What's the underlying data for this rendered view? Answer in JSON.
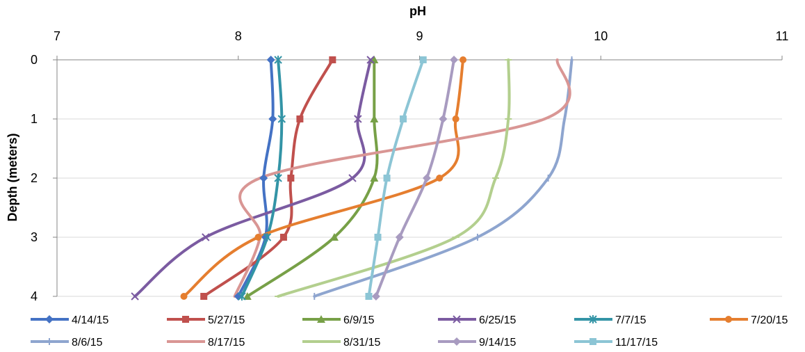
{
  "chart_data": {
    "type": "line",
    "xlabel": "pH",
    "ylabel": "Depth (meters)",
    "x_axis_position": "top",
    "y_axis_inverted": true,
    "xlim": [
      7,
      11
    ],
    "ylim": [
      0,
      4
    ],
    "xticks": [
      "7",
      "8",
      "9",
      "10",
      "11"
    ],
    "yticks": [
      "0",
      "1",
      "2",
      "3",
      "4"
    ],
    "grid": "horizontal",
    "legend_position": "bottom",
    "series": [
      {
        "name": "4/14/15",
        "color": "#4472C4",
        "marker": "diamond",
        "points": [
          [
            8.18,
            0
          ],
          [
            8.19,
            1
          ],
          [
            8.14,
            2
          ],
          [
            8.15,
            3
          ],
          [
            8.0,
            4
          ]
        ]
      },
      {
        "name": "5/27/15",
        "color": "#C0504D",
        "marker": "square",
        "points": [
          [
            8.52,
            0
          ],
          [
            8.34,
            1
          ],
          [
            8.29,
            2
          ],
          [
            8.25,
            3
          ],
          [
            7.81,
            4
          ]
        ]
      },
      {
        "name": "6/9/15",
        "color": "#77A047",
        "marker": "triangle",
        "points": [
          [
            8.75,
            0
          ],
          [
            8.75,
            1
          ],
          [
            8.75,
            2
          ],
          [
            8.53,
            3
          ],
          [
            8.05,
            4
          ]
        ]
      },
      {
        "name": "6/25/15",
        "color": "#7B5BA1",
        "marker": "x",
        "points": [
          [
            8.73,
            0
          ],
          [
            8.66,
            1
          ],
          [
            8.63,
            2
          ],
          [
            7.82,
            3
          ],
          [
            7.43,
            4
          ]
        ]
      },
      {
        "name": "7/7/15",
        "color": "#3394A6",
        "marker": "star",
        "points": [
          [
            8.22,
            0
          ],
          [
            8.24,
            1
          ],
          [
            8.22,
            2
          ],
          [
            8.16,
            3
          ],
          [
            8.02,
            4
          ]
        ]
      },
      {
        "name": "7/20/15",
        "color": "#E57E2F",
        "marker": "circle",
        "points": [
          [
            9.24,
            0
          ],
          [
            9.2,
            1
          ],
          [
            9.11,
            2
          ],
          [
            8.11,
            3
          ],
          [
            7.7,
            4
          ]
        ]
      },
      {
        "name": "8/6/15",
        "color": "#8EA5CF",
        "marker": "plus",
        "points": [
          [
            9.84,
            0
          ],
          [
            9.8,
            1
          ],
          [
            9.71,
            2
          ],
          [
            9.32,
            3
          ],
          [
            8.42,
            4
          ]
        ]
      },
      {
        "name": "8/17/15",
        "color": "#D99694",
        "marker": "none",
        "points": [
          [
            9.76,
            0
          ],
          [
            9.69,
            1
          ],
          [
            8.12,
            2
          ],
          [
            8.12,
            3
          ],
          [
            7.98,
            4
          ]
        ]
      },
      {
        "name": "8/31/15",
        "color": "#B3CF8E",
        "marker": "dash",
        "points": [
          [
            9.49,
            0
          ],
          [
            9.49,
            1
          ],
          [
            9.42,
            2
          ],
          [
            9.2,
            3
          ],
          [
            8.22,
            4
          ]
        ]
      },
      {
        "name": "9/14/15",
        "color": "#A89BC0",
        "marker": "diamond",
        "points": [
          [
            9.19,
            0
          ],
          [
            9.13,
            1
          ],
          [
            9.04,
            2
          ],
          [
            8.89,
            3
          ],
          [
            8.76,
            4
          ]
        ]
      },
      {
        "name": "11/17/15",
        "color": "#8CC5D5",
        "marker": "square",
        "points": [
          [
            9.02,
            0
          ],
          [
            8.91,
            1
          ],
          [
            8.82,
            2
          ],
          [
            8.77,
            3
          ],
          [
            8.72,
            4
          ]
        ]
      }
    ]
  }
}
